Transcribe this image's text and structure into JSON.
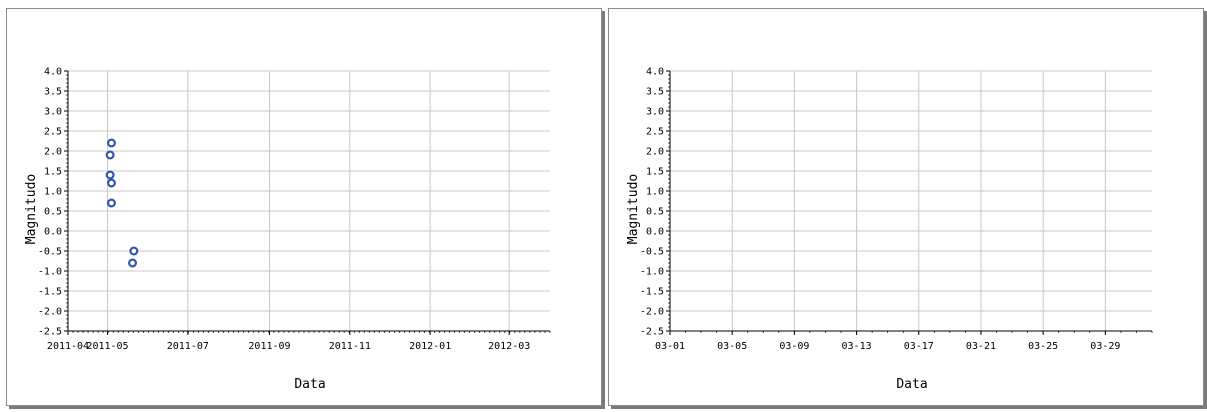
{
  "chart_data": [
    {
      "type": "scatter",
      "xlabel": "Data",
      "ylabel": "Magnitudo",
      "ylim": [
        -2.5,
        4.0
      ],
      "xlim": [
        "2011-04-01",
        "2012-04-01"
      ],
      "grid": true,
      "x_ticks": [
        "2011-04",
        "2011-05",
        "2011-07",
        "2011-09",
        "2011-11",
        "2012-01",
        "2012-03"
      ],
      "y_ticks": [
        "4.0",
        "3.5",
        "3.0",
        "2.5",
        "2.0",
        "1.5",
        "1.0",
        "0.5",
        "0.0",
        "-0.5",
        "-1.0",
        "-1.5",
        "-2.0",
        "-2.5"
      ],
      "points": [
        {
          "x": "2011-05-04",
          "y": 2.2
        },
        {
          "x": "2011-05-03",
          "y": 1.9
        },
        {
          "x": "2011-05-03",
          "y": 1.4
        },
        {
          "x": "2011-05-04",
          "y": 1.2
        },
        {
          "x": "2011-05-04",
          "y": 0.7
        },
        {
          "x": "2011-05-21",
          "y": -0.5
        },
        {
          "x": "2011-05-20",
          "y": -0.8
        }
      ],
      "marker_color": "#3355aa"
    },
    {
      "type": "scatter",
      "xlabel": "Data",
      "ylabel": "Magnitudo",
      "ylim": [
        -2.5,
        4.0
      ],
      "xlim": [
        "03-01",
        "04-01"
      ],
      "grid": true,
      "x_ticks": [
        "03-01",
        "03-05",
        "03-09",
        "03-13",
        "03-17",
        "03-21",
        "03-25",
        "03-29"
      ],
      "y_ticks": [
        "4.0",
        "3.5",
        "3.0",
        "2.5",
        "2.0",
        "1.5",
        "1.0",
        "0.5",
        "0.0",
        "-0.5",
        "-1.0",
        "-1.5",
        "-2.0",
        "-2.5"
      ],
      "points": []
    }
  ]
}
